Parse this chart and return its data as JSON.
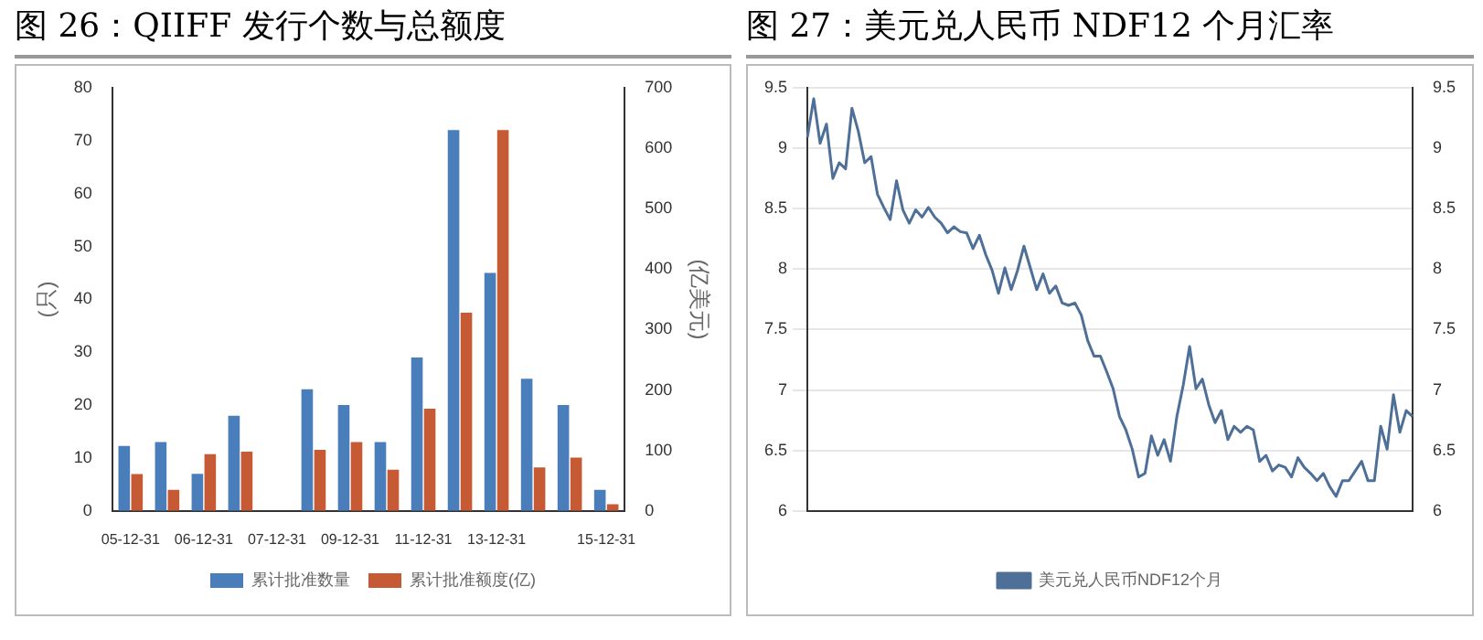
{
  "chart_data": [
    {
      "type": "bar",
      "title": "图 26：QIIFF 发行个数与总额度",
      "ylabel": "(只)",
      "y2label": "(亿美元)",
      "categories": [
        "05-12-31",
        null,
        "06-12-31",
        null,
        "07-12-31",
        null,
        "09-12-31",
        null,
        "11-12-31",
        null,
        "13-12-31",
        null,
        null,
        "15-12-31"
      ],
      "series": [
        {
          "name": "累计批准数量",
          "color": "#4a7ebb",
          "values": [
            12.3,
            13,
            7,
            18,
            null,
            23,
            20,
            13,
            29,
            72,
            45,
            25,
            20,
            4
          ]
        },
        {
          "name": "累计批准额度(亿)",
          "color": "#c65a34",
          "axis": "y2",
          "values": [
            61,
            35,
            94,
            98,
            null,
            101,
            114,
            68,
            169,
            328,
            630,
            72,
            88,
            11
          ]
        }
      ],
      "ylim": [
        0,
        80
      ],
      "yticks": [
        0,
        10,
        20,
        30,
        40,
        50,
        60,
        70,
        80
      ],
      "y2lim": [
        0,
        700
      ],
      "y2ticks": [
        0,
        100,
        200,
        300,
        400,
        500,
        600,
        700
      ],
      "legend": "bottom",
      "grid": false
    },
    {
      "type": "line",
      "title": "图 27：美元兑人民币 NDF12 个月汇率",
      "categories": [
        null,
        null,
        null,
        null,
        null,
        null,
        null,
        null,
        null,
        null,
        null,
        null,
        null,
        null,
        null,
        null,
        null,
        null,
        null,
        null,
        null,
        null,
        null,
        null,
        null,
        null,
        null,
        null,
        null,
        null,
        null,
        null,
        null,
        null,
        null,
        null,
        null,
        null,
        null,
        null,
        null,
        null,
        null,
        null,
        null,
        null,
        null,
        null,
        null,
        null,
        null,
        null,
        null,
        null,
        null,
        null,
        null,
        null,
        null,
        null,
        null,
        null,
        null,
        null,
        null,
        null,
        null,
        null,
        null,
        null,
        null,
        null,
        null,
        null,
        null,
        null,
        null,
        null,
        null,
        null,
        null,
        null,
        null,
        null,
        null,
        null,
        null,
        null,
        null,
        null,
        null,
        null,
        null,
        null,
        null,
        null
      ],
      "series": [
        {
          "name": "美元兑人民币NDF12个月",
          "color": "#4e6f97",
          "values": [
            9.09,
            9.41,
            9.04,
            9.2,
            8.75,
            8.88,
            8.83,
            9.33,
            9.14,
            8.88,
            8.93,
            8.62,
            8.51,
            8.41,
            8.73,
            8.49,
            8.38,
            8.49,
            8.43,
            8.51,
            8.43,
            8.38,
            8.3,
            8.35,
            8.31,
            8.3,
            8.17,
            8.28,
            8.12,
            7.99,
            7.8,
            8.01,
            7.83,
            7.99,
            8.19,
            8.01,
            7.83,
            7.96,
            7.8,
            7.86,
            7.72,
            7.7,
            7.72,
            7.62,
            7.41,
            7.28,
            7.28,
            7.15,
            7.01,
            6.78,
            6.67,
            6.51,
            6.28,
            6.31,
            6.62,
            6.46,
            6.59,
            6.41,
            6.78,
            7.04,
            7.36,
            7.01,
            7.09,
            6.88,
            6.73,
            6.83,
            6.59,
            6.7,
            6.65,
            6.7,
            6.67,
            6.41,
            6.46,
            6.33,
            6.38,
            6.36,
            6.28,
            6.44,
            6.36,
            6.31,
            6.25,
            6.31,
            6.2,
            6.12,
            6.25,
            6.25,
            6.33,
            6.41,
            6.25,
            6.25,
            6.7,
            6.51,
            6.96,
            6.65,
            6.83,
            6.78
          ]
        }
      ],
      "ylim": [
        6,
        9.5
      ],
      "yticks": [
        6,
        6.5,
        7,
        7.5,
        8,
        8.5,
        9,
        9.5
      ],
      "y2lim": [
        6,
        9.5
      ],
      "y2ticks": [
        6,
        6.5,
        7,
        7.5,
        8,
        8.5,
        9,
        9.5
      ],
      "legend": "bottom",
      "grid": "y"
    }
  ]
}
